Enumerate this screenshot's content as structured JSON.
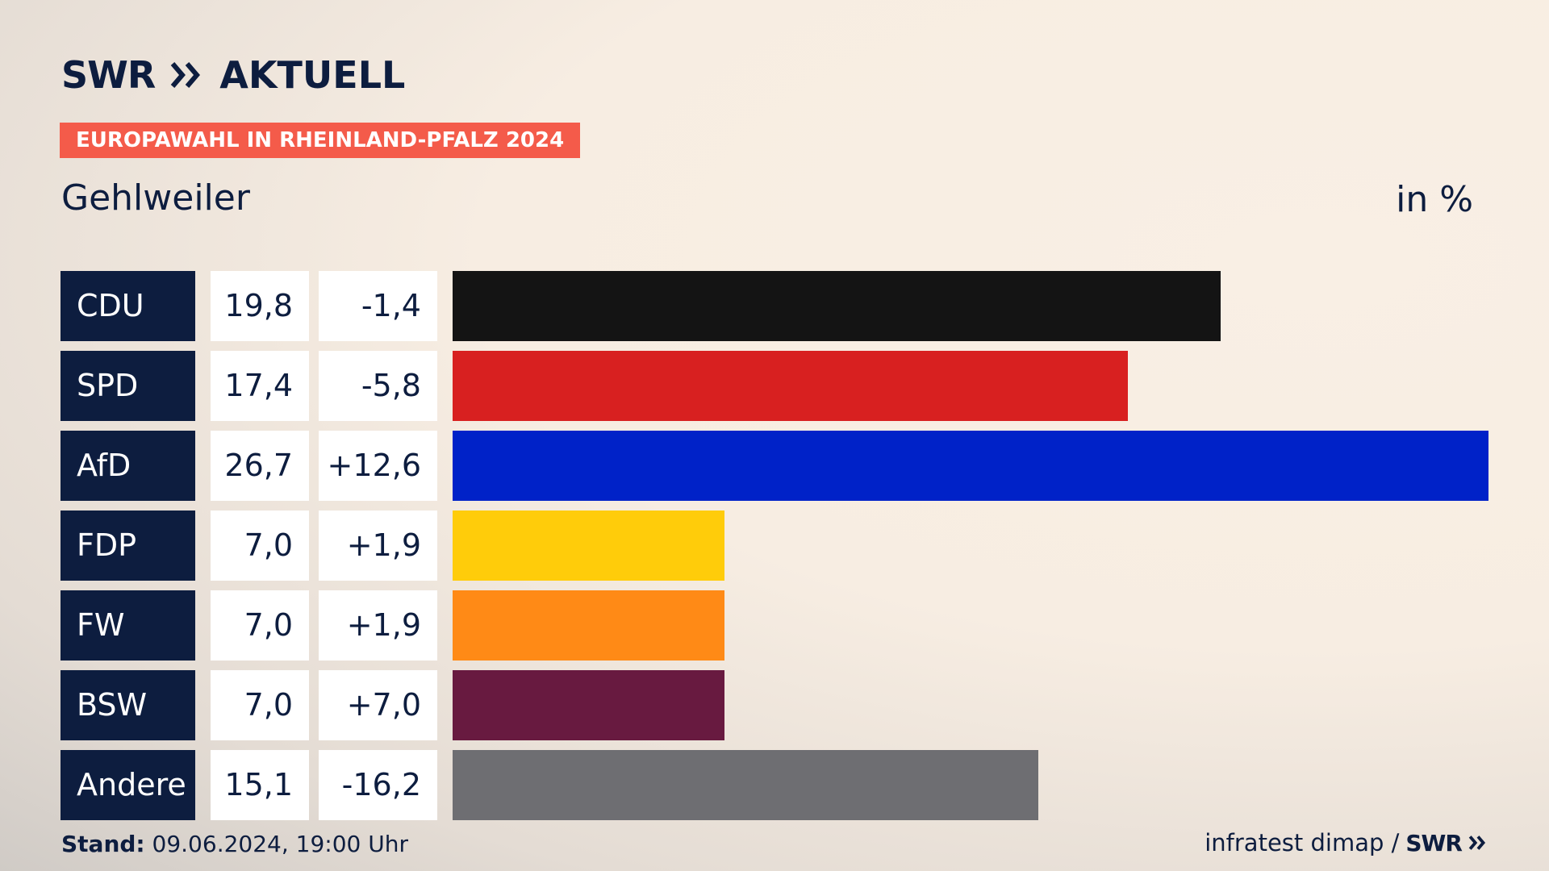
{
  "header": {
    "brand": "SWR",
    "brand_suffix": "AKTUELL",
    "tag": "EUROPAWAHL IN RHEINLAND-PFALZ 2024",
    "location": "Gehlweiler",
    "unit": "in %"
  },
  "footer": {
    "stand_label": "Stand:",
    "stand_value": "09.06.2024, 19:00 Uhr",
    "source": "infratest dimap /",
    "source_logo": "SWR"
  },
  "colors": {
    "navy": "#0d1d3f",
    "tag_red": "#f45b4a"
  },
  "chart_data": {
    "type": "bar",
    "categories": [
      "CDU",
      "SPD",
      "AfD",
      "FDP",
      "FW",
      "BSW",
      "Andere"
    ],
    "values": [
      19.8,
      17.4,
      26.7,
      7.0,
      7.0,
      7.0,
      15.1
    ],
    "value_labels": [
      "19,8",
      "17,4",
      "26,7",
      "7,0",
      "7,0",
      "7,0",
      "15,1"
    ],
    "diff_labels": [
      "-1,4",
      "-5,8",
      "+12,6",
      "+1,9",
      "+1,9",
      "+7,0",
      "-16,2"
    ],
    "colors": [
      "#141414",
      "#d82020",
      "#0022c8",
      "#ffcc0a",
      "#ff8a16",
      "#681a40",
      "#6e6e72"
    ],
    "xlim": [
      0,
      26.7
    ]
  }
}
